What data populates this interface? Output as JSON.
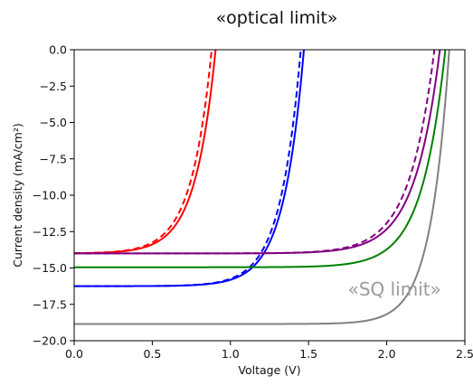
{
  "chart_data": {
    "type": "line",
    "title": "«optical limit»",
    "xlabel": "Voltage (V)",
    "ylabel": "Current density (mA/cm²)",
    "xlim": [
      0.0,
      2.5
    ],
    "ylim": [
      -20.0,
      0.0
    ],
    "x_ticks": [
      "0.0",
      "0.5",
      "1.0",
      "1.5",
      "2.0",
      "2.5"
    ],
    "y_ticks": [
      "0.0",
      "−2.5",
      "−5.0",
      "−7.5",
      "−10.0",
      "−12.5",
      "−15.0",
      "−17.5",
      "−20.0"
    ],
    "grid": false,
    "annotations": [
      {
        "text": "«SQ limit»",
        "x": 2.05,
        "y": -16.9,
        "color": "#9a9a9a"
      }
    ],
    "series": [
      {
        "color": "#ff0000",
        "style": "solid",
        "jsc": -14.0,
        "voc": 0.905,
        "knee": 0.13
      },
      {
        "color": "#ff0000",
        "style": "dashed",
        "jsc": -14.0,
        "voc": 0.88,
        "knee": 0.13
      },
      {
        "color": "#0000ff",
        "style": "solid",
        "jsc": -16.25,
        "voc": 1.47,
        "knee": 0.13
      },
      {
        "color": "#0000ff",
        "style": "dashed",
        "jsc": -16.25,
        "voc": 1.45,
        "knee": 0.13
      },
      {
        "color": "#800080",
        "style": "solid",
        "jsc": -14.0,
        "voc": 2.34,
        "knee": 0.16
      },
      {
        "color": "#800080",
        "style": "dashed",
        "jsc": -14.0,
        "voc": 2.305,
        "knee": 0.16
      },
      {
        "color": "#008000",
        "style": "solid",
        "jsc": -14.95,
        "voc": 2.375,
        "knee": 0.15
      },
      {
        "color": "#808080",
        "style": "solid",
        "jsc": -18.85,
        "voc": 2.4,
        "knee": 0.12
      }
    ]
  }
}
